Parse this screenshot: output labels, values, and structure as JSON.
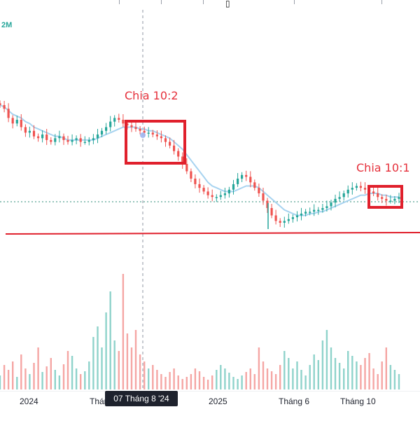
{
  "header": {
    "indicator_fragment": "2M",
    "cursor_glyph": "▯"
  },
  "annotations": [
    {
      "id": "split-1",
      "text": "Chia 10:2"
    },
    {
      "id": "split-2",
      "text": "Chia 10:1"
    }
  ],
  "x_axis": {
    "labels": [
      "2024",
      "Tháng",
      "2025",
      "Tháng 6",
      "Tháng 10"
    ],
    "crosshair_label": "07 Tháng 8 '24"
  },
  "colors": {
    "up": "#26a69a",
    "down": "#ef5350",
    "up_volume": "#8fd3cb",
    "down_volume": "#f5a6a4",
    "moving_average": "#a7d3f0",
    "price_line": "#2e8b7a",
    "horizontal_line": "#e0202c",
    "annotation_box": "#e0202c",
    "crosshair": "#8f96a3"
  },
  "chart_data": {
    "type": "line",
    "title": "",
    "xlabel": "",
    "ylabel": "",
    "grid": false,
    "x_ticks": [
      "2024",
      "Tháng",
      "2025",
      "Tháng 6",
      "Tháng 10"
    ],
    "series": [
      {
        "values": [
          100,
          98,
          93,
          90,
          92,
          88,
          85,
          86,
          83,
          82,
          84,
          81,
          80,
          82,
          83,
          81,
          80,
          81,
          82,
          80,
          80,
          81,
          82,
          84,
          86,
          88,
          91,
          93,
          92,
          90,
          89,
          88,
          87,
          86,
          85,
          85,
          84,
          83,
          82,
          80,
          78,
          75,
          72,
          68,
          64,
          60,
          57,
          55,
          53,
          51,
          50,
          50,
          51,
          52,
          54,
          57,
          60,
          62,
          61,
          58,
          55,
          52,
          48,
          44,
          40,
          37,
          36,
          37,
          38,
          39,
          40,
          41,
          42,
          42,
          43,
          43,
          44,
          45,
          47,
          49,
          50,
          52,
          54,
          55,
          56,
          55,
          54,
          53,
          52,
          50,
          49,
          48,
          48,
          49,
          50
        ]
      },
      {
        "name": "MA",
        "values": [
          100,
          99,
          97,
          95,
          94,
          93,
          91,
          90,
          88,
          87,
          86,
          85,
          84,
          83,
          83,
          82,
          81,
          81,
          81,
          81,
          81,
          81,
          81,
          82,
          83,
          84,
          85,
          86,
          87,
          88,
          88,
          88,
          88,
          87,
          87,
          86,
          86,
          85,
          84,
          83,
          82,
          80,
          78,
          76,
          73,
          70,
          67,
          64,
          61,
          58,
          56,
          55,
          54,
          53,
          53,
          53,
          54,
          55,
          56,
          56,
          56,
          55,
          53,
          51,
          49,
          47,
          45,
          43,
          42,
          41,
          40,
          40,
          40,
          41,
          41,
          42,
          42,
          43,
          44,
          45,
          46,
          47,
          48,
          49,
          50,
          51,
          51,
          52,
          52,
          52,
          51,
          51,
          50,
          50,
          50
        ]
      }
    ],
    "volume": [
      20,
      35,
      28,
      40,
      18,
      50,
      30,
      22,
      38,
      60,
      25,
      33,
      45,
      28,
      20,
      36,
      55,
      48,
      30,
      22,
      26,
      40,
      75,
      90,
      60,
      110,
      140,
      70,
      55,
      165,
      80,
      60,
      85,
      50,
      40,
      30,
      35,
      28,
      22,
      18,
      25,
      30,
      20,
      15,
      18,
      22,
      30,
      26,
      18,
      14,
      20,
      28,
      35,
      30,
      24,
      18,
      15,
      20,
      25,
      30,
      22,
      60,
      40,
      30,
      26,
      22,
      35,
      55,
      45,
      30,
      40,
      28,
      20,
      35,
      50,
      42,
      70,
      85,
      60,
      45,
      38,
      30,
      55,
      48,
      40,
      35,
      45,
      52,
      30,
      22,
      40,
      60,
      35,
      28,
      22
    ]
  }
}
